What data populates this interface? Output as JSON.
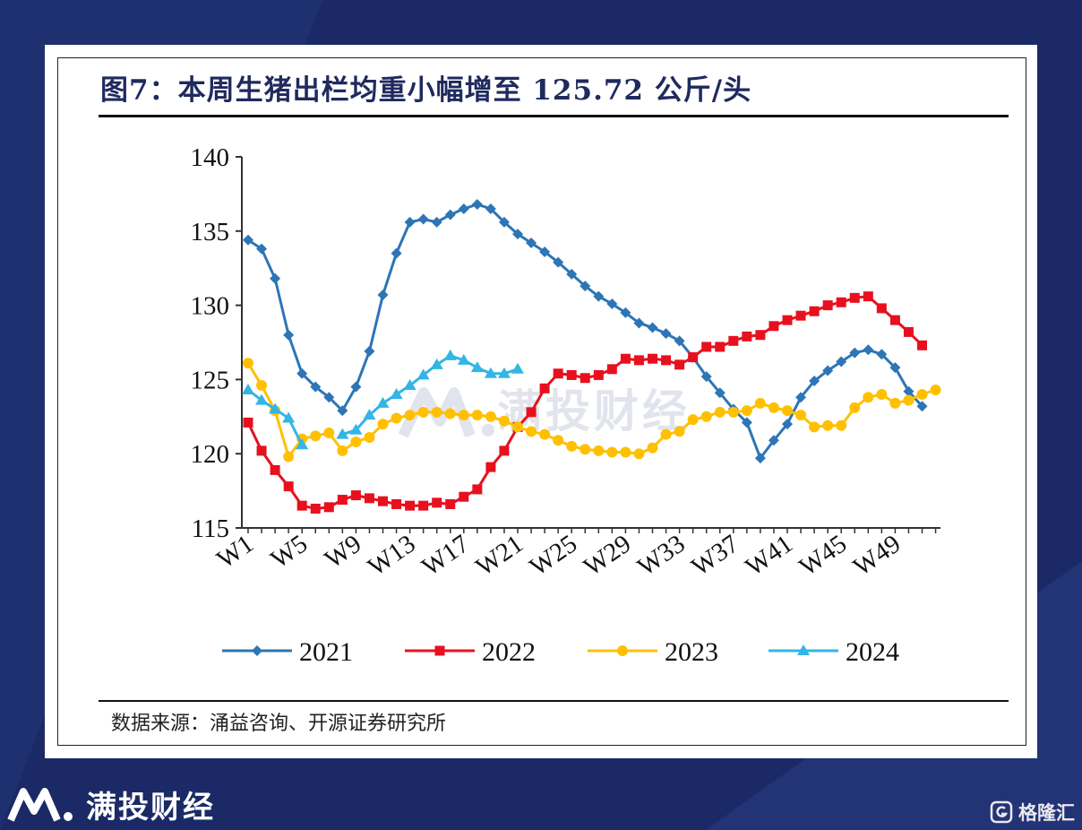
{
  "title": "图7：本周生猪出栏均重小幅增至 125.72 公斤/头",
  "source": "数据来源：涌益咨询、开源证券研究所",
  "watermark": "满投财经",
  "brand": {
    "name": "满投财经",
    "corner_name": "格隆汇"
  },
  "chart_data": {
    "type": "line",
    "title": "本周生猪出栏均重小幅增至 125.72 公斤/头",
    "xlabel": "",
    "ylabel": "",
    "ylim": [
      115,
      140
    ],
    "yticks": [
      115,
      120,
      125,
      130,
      135,
      140
    ],
    "x": [
      1,
      2,
      3,
      4,
      5,
      6,
      7,
      8,
      9,
      10,
      11,
      12,
      13,
      14,
      15,
      16,
      17,
      18,
      19,
      20,
      21,
      22,
      23,
      24,
      25,
      26,
      27,
      28,
      29,
      30,
      31,
      32,
      33,
      34,
      35,
      36,
      37,
      38,
      39,
      40,
      41,
      42,
      43,
      44,
      45,
      46,
      47,
      48,
      49,
      50,
      51,
      52
    ],
    "xtick_labels": [
      "W1",
      "W5",
      "W9",
      "W13",
      "W17",
      "W21",
      "W25",
      "W29",
      "W33",
      "W37",
      "W41",
      "W45",
      "W49"
    ],
    "xtick_positions": [
      1,
      5,
      9,
      13,
      17,
      21,
      25,
      29,
      33,
      37,
      41,
      45,
      49
    ],
    "grid": false,
    "legend_position": "bottom",
    "series": [
      {
        "name": "2021",
        "color": "#2e75b6",
        "marker": "diamond",
        "values": [
          134.4,
          133.8,
          131.8,
          128.0,
          125.4,
          124.5,
          123.8,
          122.9,
          124.5,
          126.9,
          130.7,
          133.5,
          135.6,
          135.8,
          135.6,
          136.1,
          136.5,
          136.8,
          136.5,
          135.6,
          134.8,
          134.2,
          133.6,
          132.9,
          132.1,
          131.3,
          130.6,
          130.1,
          129.5,
          128.8,
          128.5,
          128.1,
          127.6,
          126.5,
          125.2,
          124.1,
          123.0,
          122.1,
          119.7,
          120.9,
          122.0,
          123.8,
          124.9,
          125.6,
          126.2,
          126.8,
          127.0,
          126.7,
          125.8,
          124.2,
          123.2,
          null
        ]
      },
      {
        "name": "2022",
        "color": "#e8101e",
        "marker": "square",
        "values": [
          122.1,
          120.2,
          118.9,
          117.8,
          116.5,
          116.3,
          116.4,
          116.9,
          117.2,
          117.0,
          116.8,
          116.6,
          116.5,
          116.5,
          116.7,
          116.6,
          117.1,
          117.6,
          119.1,
          120.2,
          121.8,
          122.8,
          124.4,
          125.4,
          125.3,
          125.1,
          125.3,
          125.7,
          126.4,
          126.3,
          126.4,
          126.3,
          126.0,
          126.5,
          127.2,
          127.2,
          127.6,
          127.9,
          128.0,
          128.6,
          129.0,
          129.3,
          129.6,
          130.0,
          130.2,
          130.5,
          130.6,
          129.8,
          129.0,
          128.2,
          127.3,
          null
        ]
      },
      {
        "name": "2023",
        "color": "#ffc000",
        "marker": "circle",
        "values": [
          126.1,
          124.6,
          122.9,
          119.8,
          121.0,
          121.2,
          121.4,
          120.2,
          120.8,
          121.1,
          122.0,
          122.4,
          122.6,
          122.8,
          122.8,
          122.7,
          122.6,
          122.6,
          122.5,
          122.2,
          121.8,
          121.5,
          121.3,
          120.9,
          120.5,
          120.3,
          120.2,
          120.1,
          120.1,
          120.0,
          120.4,
          121.3,
          121.5,
          122.3,
          122.5,
          122.8,
          122.8,
          122.9,
          123.4,
          123.1,
          122.9,
          122.6,
          121.8,
          121.9,
          121.9,
          123.1,
          123.8,
          124.0,
          123.4,
          123.6,
          124.0,
          124.3
        ]
      },
      {
        "name": "2024",
        "color": "#33b5e5",
        "marker": "triangle",
        "values": [
          124.3,
          123.6,
          123.0,
          122.4,
          120.6,
          null,
          null,
          121.3,
          121.6,
          122.6,
          123.4,
          124.0,
          124.6,
          125.3,
          126.0,
          126.6,
          126.3,
          125.8,
          125.4,
          125.4,
          125.7,
          null,
          null,
          null,
          null,
          null,
          null,
          null,
          null,
          null,
          null,
          null,
          null,
          null,
          null,
          null,
          null,
          null,
          null,
          null,
          null,
          null,
          null,
          null,
          null,
          null,
          null,
          null,
          null,
          null,
          null,
          null
        ]
      }
    ]
  }
}
